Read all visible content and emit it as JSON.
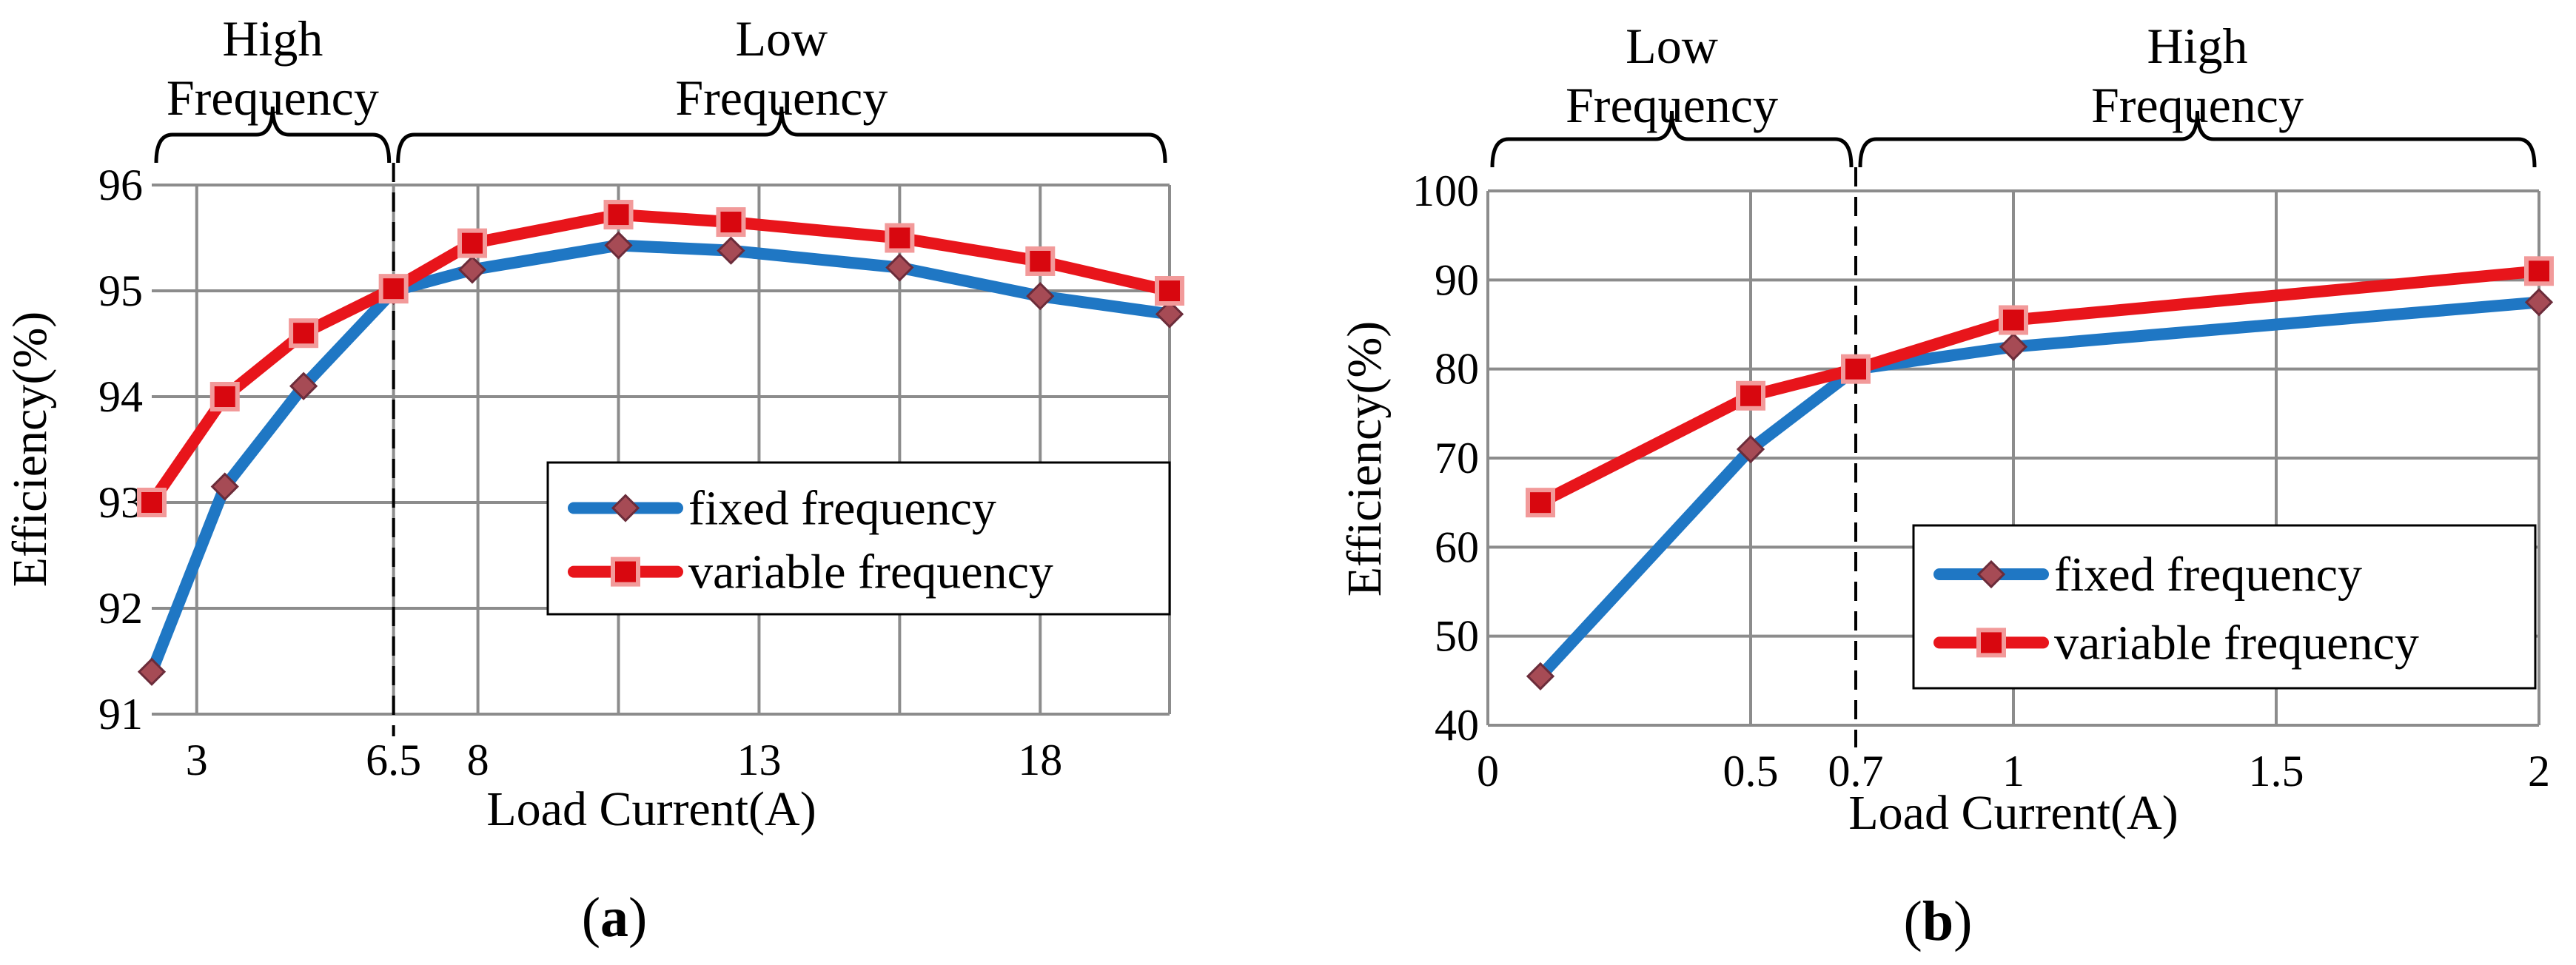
{
  "chart_data": [
    {
      "type": "line",
      "panel_label": "(a)",
      "panel_letter": "a",
      "xlabel": "Load Current(A)",
      "ylabel": "Efficiency(%)",
      "xlim": [
        2.2,
        20.3
      ],
      "ylim": [
        91,
        96
      ],
      "x_ticks": [
        3,
        6.5,
        8,
        13,
        18
      ],
      "y_ticks": [
        91,
        92,
        93,
        94,
        95,
        96
      ],
      "x_grid": [
        3,
        6.5,
        8,
        10.5,
        13,
        15.5,
        18,
        20.3
      ],
      "grid": true,
      "boundary_x": 6.5,
      "regions": [
        {
          "label_lines": [
            "High",
            "Frequency"
          ],
          "x_start": 2.2,
          "x_end": 6.5
        },
        {
          "label_lines": [
            "Low",
            "Frequency"
          ],
          "x_start": 6.5,
          "x_end": 20.3
        }
      ],
      "legend_position": "center-right",
      "series": [
        {
          "name": "fixed frequency",
          "color": "#1f77c4",
          "marker": "diamond",
          "x": [
            2.2,
            3.5,
            4.9,
            6.5,
            7.9,
            10.5,
            12.5,
            15.5,
            18,
            20.3
          ],
          "y": [
            91.4,
            93.15,
            94.1,
            95.0,
            95.2,
            95.43,
            95.38,
            95.22,
            94.95,
            94.78
          ]
        },
        {
          "name": "variable frequency",
          "color": "#e8151b",
          "marker": "square",
          "x": [
            2.2,
            3.5,
            4.9,
            6.5,
            7.9,
            10.5,
            12.5,
            15.5,
            18,
            20.3
          ],
          "y": [
            93.0,
            94.0,
            94.6,
            95.02,
            95.45,
            95.72,
            95.65,
            95.5,
            95.28,
            95.0
          ]
        }
      ]
    },
    {
      "type": "line",
      "panel_label": "(b)",
      "panel_letter": "b",
      "xlabel": "Load Current(A)",
      "ylabel": "Efficiency(%)",
      "xlim": [
        0,
        2
      ],
      "ylim": [
        40,
        100
      ],
      "x_ticks": [
        0,
        0.5,
        0.7,
        1,
        1.5,
        2
      ],
      "y_ticks": [
        40,
        50,
        60,
        70,
        80,
        90,
        100
      ],
      "x_grid": [
        0,
        0.5,
        1,
        1.5,
        2
      ],
      "grid": true,
      "boundary_x": 0.7,
      "regions": [
        {
          "label_lines": [
            "Low",
            "Frequency"
          ],
          "x_start": 0,
          "x_end": 0.7
        },
        {
          "label_lines": [
            "High",
            "Frequency"
          ],
          "x_start": 0.7,
          "x_end": 2
        }
      ],
      "legend_position": "lower-right",
      "series": [
        {
          "name": "fixed frequency",
          "color": "#1f77c4",
          "marker": "diamond",
          "x": [
            0.1,
            0.5,
            0.7,
            1.0,
            2.0
          ],
          "y": [
            45.5,
            71,
            80,
            82.5,
            87.5
          ]
        },
        {
          "name": "variable frequency",
          "color": "#e8151b",
          "marker": "square",
          "x": [
            0.1,
            0.5,
            0.7,
            1.0,
            2.0
          ],
          "y": [
            65,
            77,
            80,
            85.5,
            91
          ]
        }
      ]
    }
  ]
}
